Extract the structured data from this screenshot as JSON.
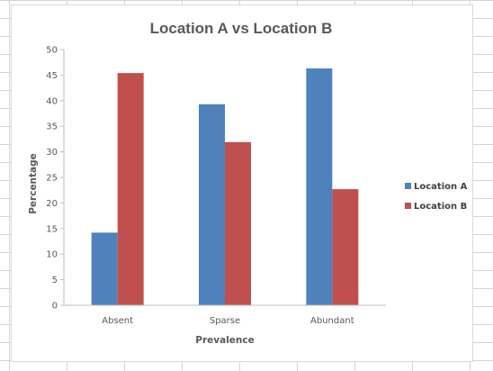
{
  "chart_data": {
    "type": "bar",
    "title": "Location A vs Location B",
    "xlabel": "Prevalence",
    "ylabel": "Percentage",
    "categories": [
      "Absent",
      "Sparse",
      "Abundant"
    ],
    "series": [
      {
        "name": "Location A",
        "color": "#4f81bd",
        "values": [
          14.2,
          39.3,
          46.3
        ]
      },
      {
        "name": "Location B",
        "color": "#c0504d",
        "values": [
          45.4,
          31.9,
          22.7
        ]
      }
    ],
    "ylim": [
      0,
      50
    ],
    "y_ticks": [
      "0",
      "5",
      "10",
      "15",
      "20",
      "25",
      "30",
      "35",
      "40",
      "45",
      "50"
    ],
    "grid": false,
    "legend_position": "right"
  }
}
